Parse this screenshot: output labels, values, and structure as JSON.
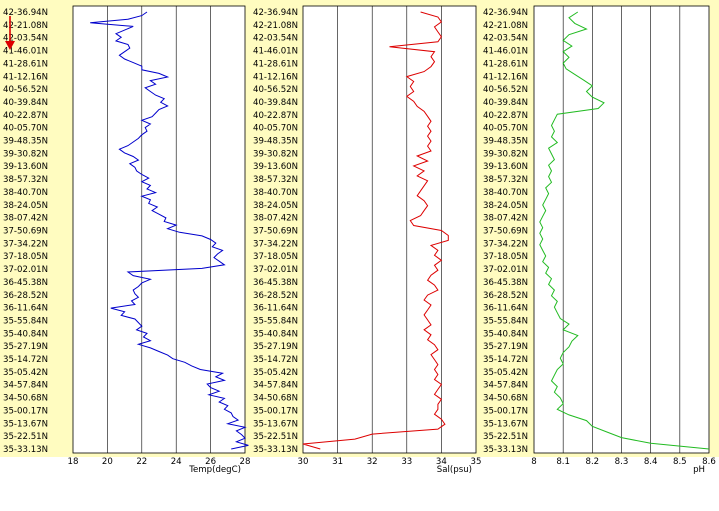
{
  "colors": {
    "background": "#fffcc0",
    "plot_area": "#ffffff",
    "grid": "#000000",
    "temperature": "#0000cc",
    "salinity": "#dd0000",
    "ph": "#22bb22",
    "direction_arrow": "#dd0000"
  },
  "icons": {
    "direction_arrow": "down-arrow-icon"
  },
  "latitude_labels": [
    "42-36.94N",
    "42-21.08N",
    "42-03.54N",
    "41-46.01N",
    "41-28.61N",
    "41-12.16N",
    "40-56.52N",
    "40-39.84N",
    "40-22.87N",
    "40-05.70N",
    "39-48.35N",
    "39-30.82N",
    "39-13.60N",
    "38-57.32N",
    "38-40.70N",
    "38-24.05N",
    "38-07.42N",
    "37-50.69N",
    "37-34.22N",
    "37-18.05N",
    "37-02.01N",
    "36-45.38N",
    "36-28.52N",
    "36-11.64N",
    "35-55.84N",
    "35-40.84N",
    "35-27.19N",
    "35-14.72N",
    "35-05.42N",
    "34-57.84N",
    "34-50.68N",
    "35-00.17N",
    "35-13.67N",
    "35-22.51N",
    "35-33.13N"
  ],
  "chart_data": [
    {
      "type": "line",
      "title": "",
      "xlabel": "Temp(degC)",
      "ylabel": "",
      "xlim": [
        18,
        28
      ],
      "xticks": [
        "18",
        "20",
        "22",
        "24",
        "26",
        "28"
      ],
      "categories_axis": "y",
      "series": [
        {
          "values": [
            22.3,
            22.0,
            21.2,
            19.0,
            21.5,
            21.0,
            20.5,
            20.8,
            20.5,
            21.2,
            21.3,
            21.0,
            20.7,
            21.0,
            21.5,
            22.0,
            22.0,
            23.0,
            23.5,
            22.5,
            22.8,
            22.2,
            22.5,
            22.8,
            23.3,
            23.1,
            23.5,
            23.0,
            22.8,
            22.6,
            22.0,
            22.5,
            22.2,
            22.3,
            22.0,
            21.8,
            21.5,
            21.2,
            20.7,
            21.0,
            21.5,
            21.8,
            21.3,
            21.6,
            21.7,
            22.0,
            22.4,
            22.0,
            22.5,
            22.3,
            22.8,
            22.0,
            22.5,
            22.4,
            22.9,
            22.6,
            23.0,
            23.4,
            23.3,
            24.0,
            23.5,
            24.2,
            25.5,
            26.0,
            26.3,
            26.1,
            26.7,
            26.4,
            26.2,
            26.5,
            26.8,
            25.5,
            21.2,
            21.5,
            22.5,
            22.0,
            21.8,
            21.5,
            21.6,
            21.8,
            21.4,
            21.6,
            20.2,
            21.0,
            20.8,
            21.6,
            21.8,
            22.0,
            21.7,
            22.3,
            22.1,
            22.5,
            21.8,
            22.5,
            23.0,
            23.5,
            23.8,
            24.5,
            24.9,
            25.4,
            26.7,
            26.3,
            26.8,
            25.8,
            26.0,
            26.5,
            25.9,
            26.8,
            26.5,
            27.0,
            26.8,
            27.2,
            27.3,
            27.6,
            27.0,
            28.0,
            27.5,
            27.8,
            28.0,
            27.5,
            28.2,
            27.2
          ]
        }
      ]
    },
    {
      "type": "line",
      "title": "",
      "xlabel": "Sal(psu)",
      "ylabel": "",
      "xlim": [
        30,
        35
      ],
      "xticks": [
        "30",
        "31",
        "32",
        "33",
        "34",
        "35"
      ],
      "categories_axis": "y",
      "series": [
        {
          "values": [
            33.4,
            33.9,
            34.0,
            33.8,
            33.9,
            34.0,
            33.9,
            32.5,
            33.8,
            33.7,
            33.8,
            33.7,
            33.5,
            33.0,
            33.2,
            33.1,
            33.2,
            33.0,
            33.2,
            33.3,
            33.5,
            33.6,
            33.7,
            33.6,
            33.7,
            33.6,
            33.7,
            33.6,
            33.7,
            33.3,
            33.6,
            33.2,
            33.5,
            33.3,
            33.6,
            33.5,
            33.4,
            33.3,
            33.5,
            33.6,
            33.5,
            33.4,
            33.1,
            33.2,
            34.0,
            34.2,
            34.2,
            33.7,
            33.9,
            33.8,
            34.0,
            33.8,
            33.9,
            33.7,
            33.6,
            33.8,
            33.9,
            33.6,
            33.5,
            33.7,
            33.6,
            33.5,
            33.6,
            33.7,
            33.5,
            33.7,
            33.6,
            33.8,
            33.9,
            33.7,
            33.8,
            33.9,
            33.8,
            33.9,
            33.8,
            34.0,
            33.9,
            33.8,
            34.0,
            33.9,
            33.9,
            33.8,
            34.0,
            34.1,
            33.9,
            32.0,
            31.5,
            30.0,
            30.5
          ]
        }
      ]
    },
    {
      "type": "line",
      "title": "",
      "xlabel": "pH",
      "ylabel": "",
      "xlim": [
        8,
        8.6
      ],
      "xticks": [
        "8",
        "8.1",
        "8.2",
        "8.3",
        "8.4",
        "8.5",
        "8.6"
      ],
      "categories_axis": "y",
      "series": [
        {
          "values": [
            8.15,
            8.12,
            8.14,
            8.18,
            8.12,
            8.1,
            8.13,
            8.1,
            8.12,
            8.1,
            8.11,
            8.14,
            8.17,
            8.2,
            8.18,
            8.2,
            8.24,
            8.22,
            8.08,
            8.07,
            8.06,
            8.07,
            8.06,
            8.08,
            8.05,
            8.06,
            8.07,
            8.05,
            8.06,
            8.05,
            8.06,
            8.04,
            8.05,
            8.04,
            8.03,
            8.04,
            8.03,
            8.02,
            8.03,
            8.02,
            8.03,
            8.02,
            8.03,
            8.04,
            8.03,
            8.05,
            8.04,
            8.06,
            8.05,
            8.07,
            8.06,
            8.08,
            8.07,
            8.08,
            8.09,
            8.12,
            8.1,
            8.15,
            8.13,
            8.12,
            8.1,
            8.09,
            8.1,
            8.08,
            8.07,
            8.06,
            8.08,
            8.07,
            8.09,
            8.1,
            8.08,
            8.12,
            8.18,
            8.2,
            8.25,
            8.3,
            8.4,
            8.6
          ]
        }
      ]
    }
  ]
}
